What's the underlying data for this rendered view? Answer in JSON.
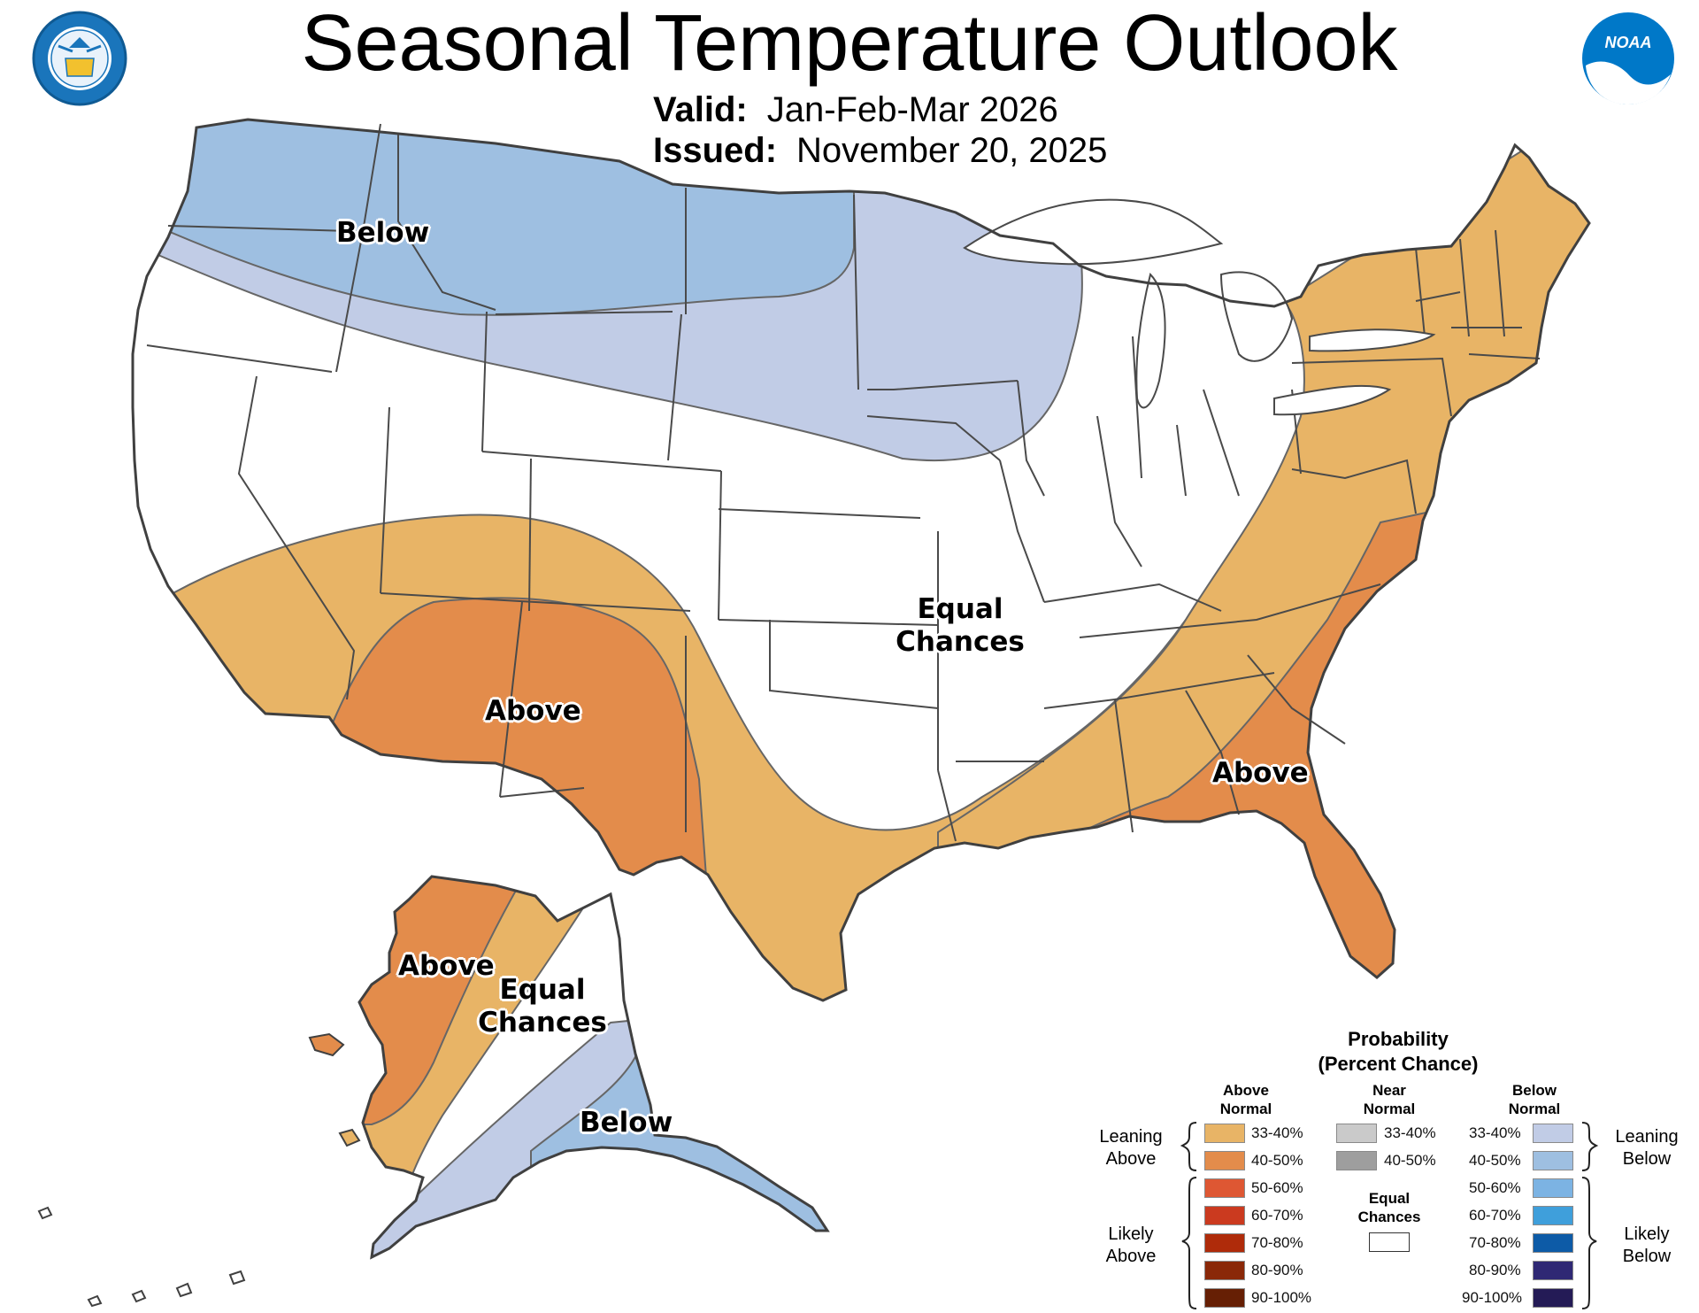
{
  "header": {
    "title": "Seasonal Temperature Outlook",
    "valid_label": "Valid:",
    "valid_value": "Jan-Feb-Mar 2026",
    "issued_label": "Issued:",
    "issued_value": "November 20, 2025"
  },
  "logos": {
    "commerce_seal": "DEPARTMENT OF COMMERCE · UNITED STATES OF AMERICA",
    "noaa_logo": "NOAA"
  },
  "map_labels": {
    "conus_below": "Below",
    "conus_equal_1": "Equal",
    "conus_equal_2": "Chances",
    "conus_above_sw": "Above",
    "conus_above_se": "Above",
    "ak_above": "Above",
    "ak_equal_1": "Equal",
    "ak_equal_2": "Chances",
    "ak_below": "Below"
  },
  "colors": {
    "above_33_40": "#e8b466",
    "above_40_50": "#e38c4b",
    "above_50_60": "#de5733",
    "above_60_70": "#cb3a1f",
    "above_70_80": "#af2b0a",
    "above_80_90": "#8a2808",
    "above_90_100": "#661f04",
    "near_33_40": "#cacaca",
    "near_40_50": "#9e9e9e",
    "below_33_40": "#c1cce6",
    "below_40_50": "#9ebfe1",
    "below_50_60": "#7cb3e3",
    "below_60_70": "#3f9fdb",
    "below_70_80": "#0d5ba7",
    "below_80_90": "#2f2874",
    "below_90_100": "#241b56",
    "equal_chances": "#ffffff",
    "border": "#555555"
  },
  "legend": {
    "title_line1": "Probability",
    "title_line2": "(Percent Chance)",
    "above_head_1": "Above",
    "above_head_2": "Normal",
    "near_head_1": "Near",
    "near_head_2": "Normal",
    "below_head_1": "Below",
    "below_head_2": "Normal",
    "above_rows": [
      "33-40%",
      "40-50%",
      "50-60%",
      "60-70%",
      "70-80%",
      "80-90%",
      "90-100%"
    ],
    "near_rows": [
      "33-40%",
      "40-50%"
    ],
    "below_rows": [
      "33-40%",
      "40-50%",
      "50-60%",
      "60-70%",
      "70-80%",
      "80-90%",
      "90-100%"
    ],
    "equal_1": "Equal",
    "equal_2": "Chances",
    "leaning_above_1": "Leaning",
    "leaning_above_2": "Above",
    "likely_above_1": "Likely",
    "likely_above_2": "Above",
    "leaning_below_1": "Leaning",
    "leaning_below_2": "Below",
    "likely_below_1": "Likely",
    "likely_below_2": "Below"
  }
}
